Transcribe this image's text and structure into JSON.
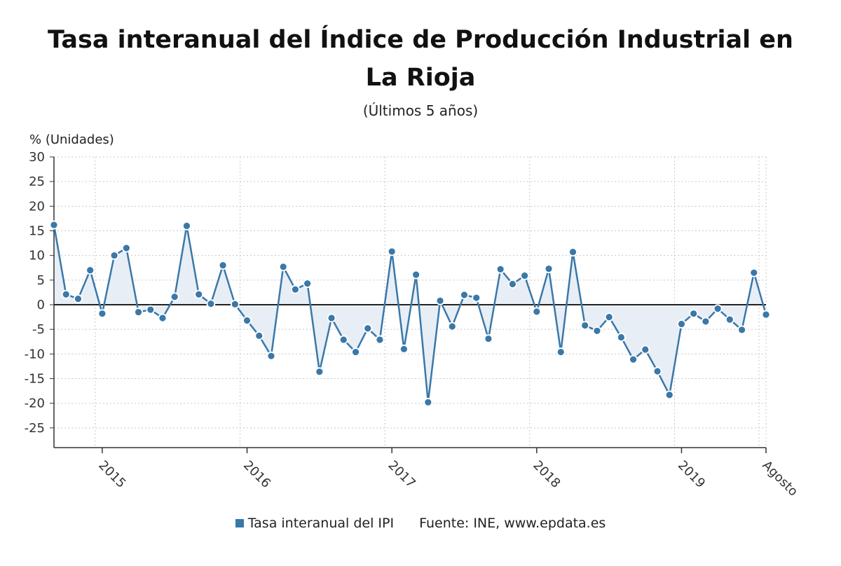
{
  "title": "Tasa interanual del Índice de Producción Industrial en La Rioja",
  "subtitle": "(Últimos 5 años)",
  "source": "Fuente: INE, www.epdata.es",
  "colors": {
    "line": "#3a78a8",
    "area": "#e8eef6",
    "grid": "#c8c8c8",
    "zero": "#222222",
    "axis": "#333333"
  },
  "chart_data": {
    "type": "line",
    "title": "Tasa interanual del Índice de Producción Industrial en La Rioja",
    "subtitle": "(Últimos 5 años)",
    "ylabel": "% (Unidades)",
    "xlabel": "",
    "ylim": [
      -29,
      30
    ],
    "yticks": [
      30,
      25,
      20,
      15,
      10,
      5,
      0,
      -5,
      -10,
      -15,
      -20,
      -25
    ],
    "x_tick_labels": [
      {
        "label": "2015",
        "index": 4
      },
      {
        "label": "2016",
        "index": 16
      },
      {
        "label": "2017",
        "index": 28
      },
      {
        "label": "2018",
        "index": 40
      },
      {
        "label": "2019",
        "index": 52
      },
      {
        "label": "Agosto",
        "index": 59
      }
    ],
    "grid": true,
    "legend": "bottom-center",
    "series": [
      {
        "name": "Tasa interanual del IPI",
        "start": "2014-09",
        "end": "2019-08",
        "frequency": "monthly",
        "values": [
          16.2,
          2.1,
          1.2,
          7.0,
          -1.8,
          10.0,
          11.5,
          -1.5,
          -1.0,
          -2.7,
          1.6,
          16.0,
          2.1,
          0.2,
          8.0,
          0.1,
          -3.2,
          -6.3,
          -10.4,
          7.7,
          3.1,
          4.3,
          -13.6,
          -2.7,
          -7.1,
          -9.6,
          -4.8,
          -7.1,
          10.8,
          -9.0,
          6.1,
          -19.8,
          0.8,
          -4.4,
          2.0,
          1.4,
          -6.9,
          7.2,
          4.2,
          5.9,
          -1.4,
          7.3,
          -9.6,
          10.7,
          -4.2,
          -5.3,
          -2.5,
          -6.6,
          -11.1,
          -9.1,
          -13.5,
          -18.3,
          -3.9,
          -1.8,
          -3.4,
          -0.8,
          -3.0,
          -5.1,
          6.5,
          -2.0
        ]
      }
    ]
  }
}
